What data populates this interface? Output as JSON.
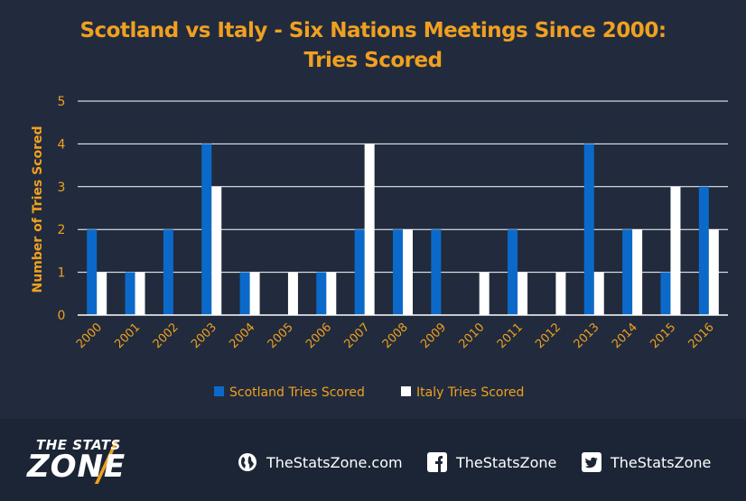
{
  "chart_data": {
    "type": "bar",
    "title": "Scotland vs Italy - Six Nations Meetings Since 2000:",
    "subtitle": "Tries Scored",
    "ylabel": "Number of Tries Scored",
    "xlabel": "",
    "ylim": [
      0,
      5
    ],
    "yticks": [
      0,
      1,
      2,
      3,
      4,
      5
    ],
    "grid": true,
    "legend_position": "bottom",
    "categories": [
      "2000",
      "2001",
      "2002",
      "2003",
      "2004",
      "2005",
      "2006",
      "2007",
      "2008",
      "2009",
      "2010",
      "2011",
      "2012",
      "2013",
      "2014",
      "2015",
      "2016"
    ],
    "series": [
      {
        "name": "Scotland Tries Scored",
        "color": "#0b6ac9",
        "values": [
          2,
          1,
          2,
          4,
          1,
          0,
          1,
          2,
          2,
          2,
          0,
          2,
          0,
          4,
          2,
          1,
          3
        ]
      },
      {
        "name": "Italy Tries Scored",
        "color": "#ffffff",
        "values": [
          1,
          1,
          0,
          3,
          1,
          1,
          1,
          4,
          2,
          0,
          1,
          1,
          1,
          1,
          2,
          3,
          2
        ]
      }
    ]
  },
  "colors": {
    "background": "#212b3d",
    "footer": "#1c2535",
    "accent": "#f0a020",
    "grid": "#ffffff"
  },
  "footer": {
    "logo_top": "THE STATS",
    "logo_main": "ZONE",
    "website": "TheStatsZone.com",
    "facebook": "TheStatsZone",
    "twitter": "TheStatsZone",
    "icons": [
      "globe-icon",
      "facebook-icon",
      "twitter-icon"
    ]
  }
}
